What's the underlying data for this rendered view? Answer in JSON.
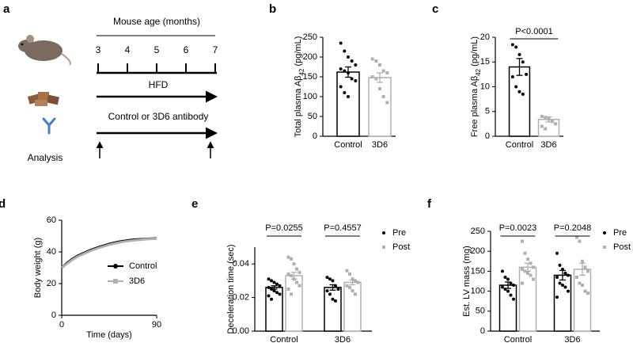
{
  "diagram": {
    "panel": "a",
    "title": "Mouse age (months)",
    "ages": [
      3,
      4,
      5,
      6,
      7
    ],
    "diet": "HFD",
    "treatment": "Control or 3D6 antibody",
    "analysis": "Analysis"
  },
  "chart_data": [
    {
      "type": "bar",
      "panel": "b",
      "ylabel": [
        "Total plasma Aβ",
        "42",
        " (pg/mL)"
      ],
      "categories": [
        "Control",
        "3D6"
      ],
      "values": [
        162,
        148
      ],
      "errors": [
        13,
        12
      ],
      "colors": [
        "#000000",
        "#b0b0b0"
      ],
      "markers": [
        "circle",
        "square"
      ],
      "points": [
        [
          235,
          215,
          200,
          190,
          180,
          170,
          165,
          160,
          145,
          140,
          125,
          110,
          100
        ],
        [
          195,
          190,
          180,
          165,
          160,
          150,
          145,
          120,
          100,
          85
        ]
      ],
      "ylim": [
        0,
        250
      ],
      "yticks": [
        0,
        50,
        100,
        150,
        200,
        250
      ]
    },
    {
      "type": "bar",
      "panel": "c",
      "ylabel": [
        "Free plasma Aβ",
        "42",
        " (pg/mL)"
      ],
      "categories": [
        "Control",
        "3D6"
      ],
      "values": [
        14,
        3.4
      ],
      "errors": [
        1.7,
        0.5
      ],
      "colors": [
        "#000000",
        "#b0b0b0"
      ],
      "markers": [
        "circle",
        "square"
      ],
      "points": [
        [
          18.5,
          18,
          16.5,
          15,
          12.5,
          12,
          10,
          9,
          8.5
        ],
        [
          4,
          3.8,
          3.5,
          3,
          2.5,
          2,
          1.5
        ]
      ],
      "annotation": "P<0.0001",
      "ylim": [
        0,
        20
      ],
      "yticks": [
        0,
        5,
        10,
        15,
        20
      ]
    },
    {
      "type": "line",
      "panel": "d",
      "xlabel": "Time (days)",
      "ylabel": "Body weight (g)",
      "x": [
        0,
        5,
        10,
        15,
        20,
        25,
        30,
        35,
        40,
        45,
        50,
        55,
        60,
        65,
        70,
        75,
        80,
        85,
        90
      ],
      "series": [
        {
          "name": "Control",
          "color": "#000000",
          "values": [
            30,
            33,
            35.5,
            37.5,
            39,
            40.5,
            41.8,
            43,
            44,
            45,
            45.8,
            46.5,
            47,
            47.5,
            47.8,
            48,
            48.2,
            48.4,
            48.5
          ]
        },
        {
          "name": "3D6",
          "color": "#b0b0b0",
          "values": [
            30,
            32.5,
            35,
            37,
            38.5,
            40,
            41.3,
            42.5,
            43.5,
            44.5,
            45.3,
            46,
            46.6,
            47,
            47.4,
            47.7,
            48,
            48.2,
            48.3
          ]
        }
      ],
      "xlim": [
        0,
        90
      ],
      "xticks": [
        0,
        90
      ],
      "ylim": [
        0,
        60
      ],
      "yticks": [
        0,
        20,
        40,
        60
      ]
    },
    {
      "type": "bar",
      "panel": "e",
      "ylabel": "Deceleration time (sec)",
      "categories": [
        "Control",
        "3D6"
      ],
      "annotations": [
        "P=0.0255",
        "P=0.4557"
      ],
      "series": [
        {
          "name": "Pre",
          "color": "#000000",
          "marker": "circle",
          "values": [
            0.026,
            0.026
          ],
          "errors": [
            0.001,
            0.0016
          ],
          "points": [
            [
              0.031,
              0.03,
              0.029,
              0.028,
              0.027,
              0.026,
              0.025,
              0.024,
              0.023,
              0.022,
              0.021,
              0.019
            ],
            [
              0.032,
              0.031,
              0.03,
              0.027,
              0.025,
              0.024,
              0.022,
              0.019,
              0.018
            ]
          ]
        },
        {
          "name": "Post",
          "color": "#b0b0b0",
          "marker": "square",
          "values": [
            0.033,
            0.029
          ],
          "errors": [
            0.002,
            0.0014
          ],
          "points": [
            [
              0.044,
              0.043,
              0.04,
              0.037,
              0.035,
              0.034,
              0.033,
              0.031,
              0.029,
              0.027,
              0.025,
              0.022
            ],
            [
              0.036,
              0.034,
              0.031,
              0.03,
              0.029,
              0.027,
              0.026,
              0.024,
              0.022
            ]
          ]
        }
      ],
      "ylim": [
        0,
        0.05
      ],
      "yticks": [
        {
          "value": 0,
          "label": "0.00"
        },
        {
          "value": 0.02,
          "label": "0.02"
        },
        {
          "value": 0.04,
          "label": "0.04"
        }
      ]
    },
    {
      "type": "bar",
      "panel": "f",
      "ylabel": "Est. LV mass (mg)",
      "categories": [
        "Control",
        "3D6"
      ],
      "annotations": [
        "P=0.0023",
        "P=0.2048"
      ],
      "series": [
        {
          "name": "Pre",
          "color": "#000000",
          "marker": "circle",
          "values": [
            115,
            140
          ],
          "errors": [
            8,
            12
          ],
          "points": [
            [
              150,
              135,
              130,
              120,
              115,
              110,
              105,
              100,
              90,
              80
            ],
            [
              195,
              165,
              155,
              145,
              140,
              135,
              120,
              115,
              110,
              100,
              85
            ]
          ]
        },
        {
          "name": "Post",
          "color": "#b0b0b0",
          "marker": "square",
          "values": [
            160,
            155
          ],
          "errors": [
            10,
            15
          ],
          "points": [
            [
              225,
              195,
              180,
              170,
              160,
              155,
              150,
              145,
              140,
              130,
              120
            ],
            [
              235,
              225,
              175,
              160,
              150,
              135,
              120,
              115,
              100,
              95
            ]
          ]
        }
      ],
      "ylim": [
        0,
        250
      ],
      "yticks": [
        0,
        50,
        100,
        150,
        200,
        250
      ]
    }
  ]
}
